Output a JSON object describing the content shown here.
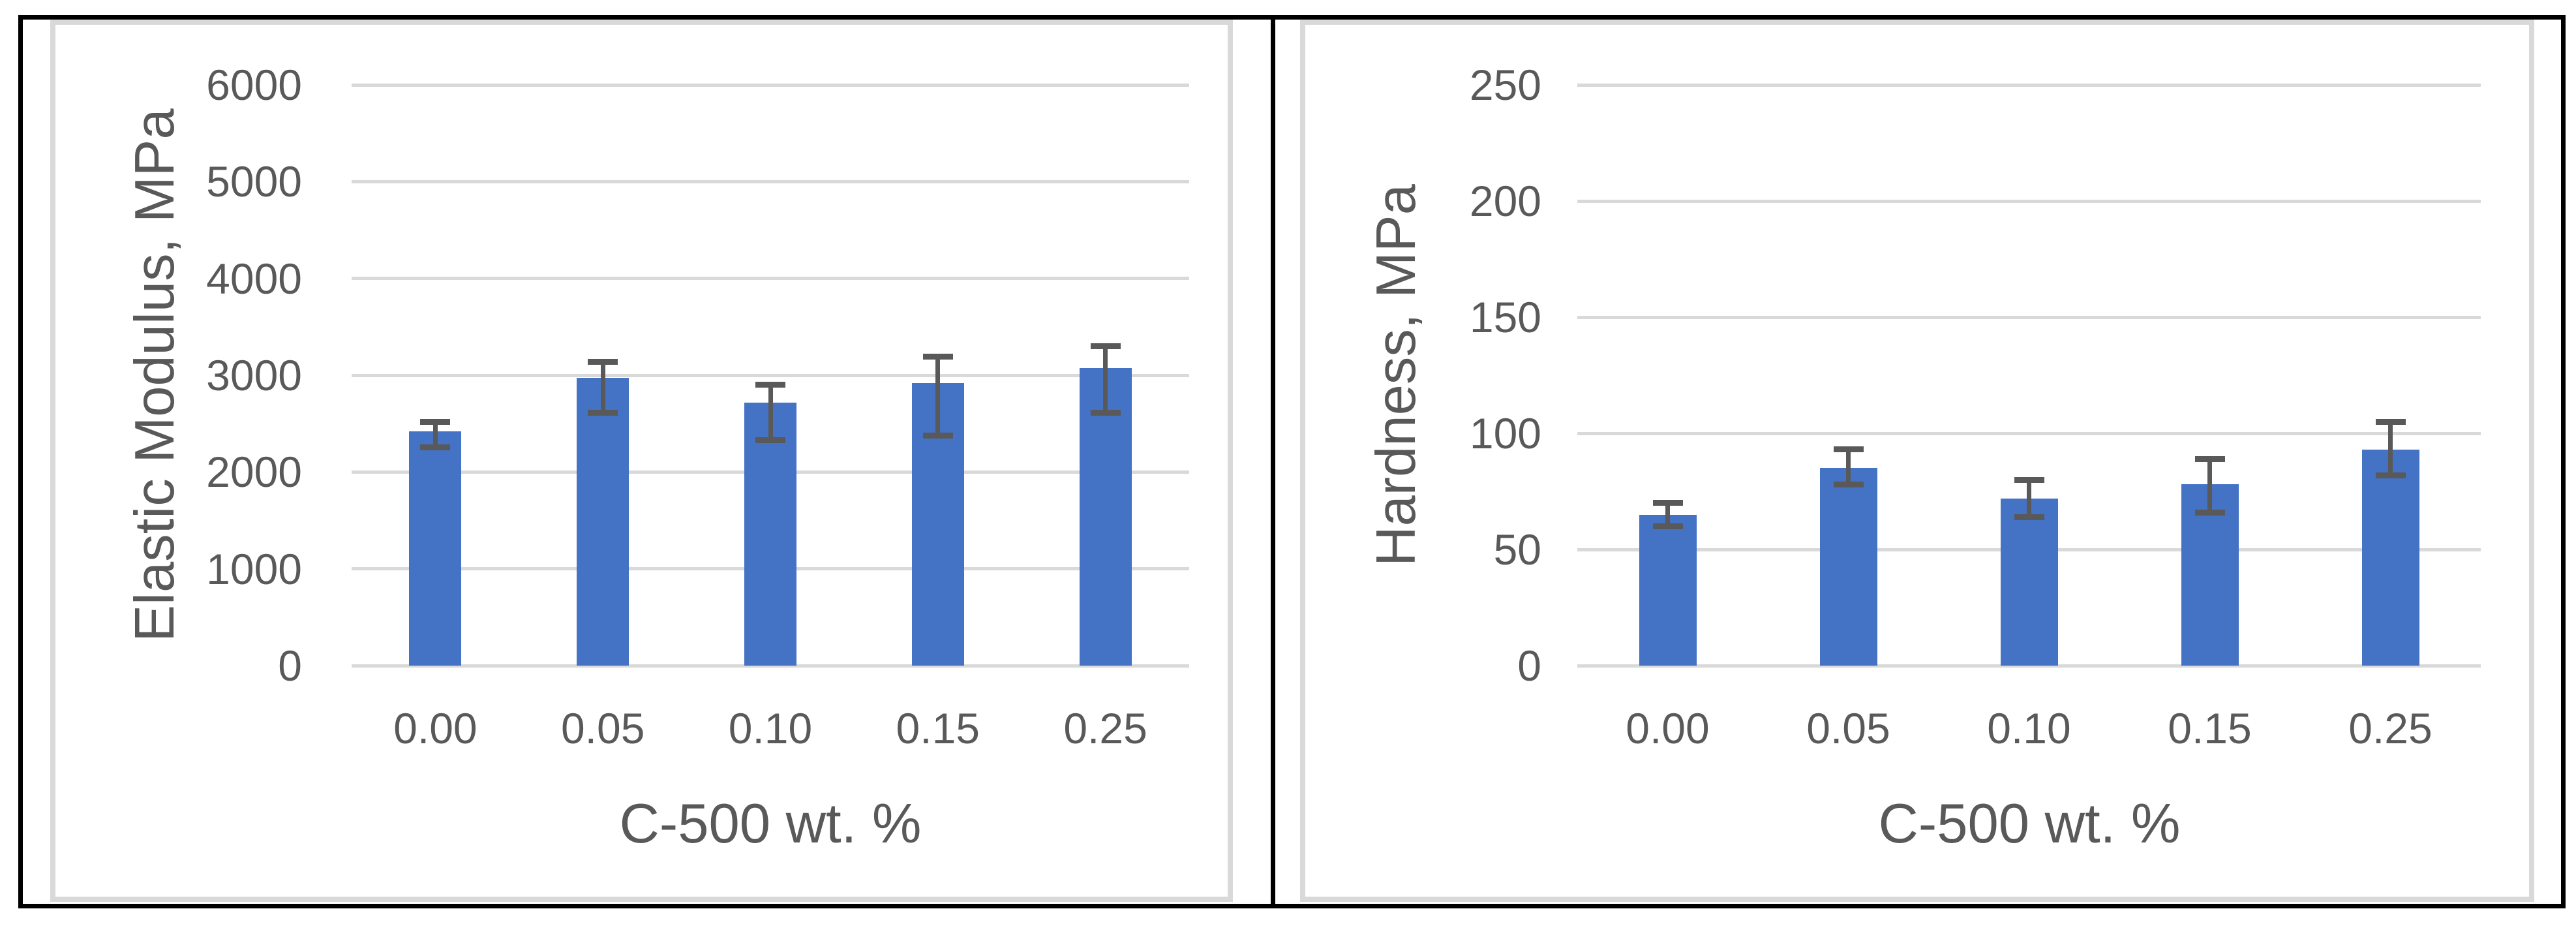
{
  "page": {
    "background": "#FFFFFF"
  },
  "colors": {
    "bar": "#4472C4",
    "error_bar": "#595959",
    "gridline": "#D9D9D9",
    "text": "#595959",
    "chart_border": "#D9D9D9",
    "frame_border": "#000000"
  },
  "chart_data": [
    {
      "type": "bar",
      "title": "",
      "xlabel": "C-500 wt. %",
      "ylabel": "Elastic Modulus, MPa",
      "categories": [
        "0.00",
        "0.05",
        "0.10",
        "0.15",
        "0.25"
      ],
      "values": [
        2420,
        2970,
        2720,
        2920,
        3075
      ],
      "error_up": [
        95,
        170,
        180,
        275,
        225
      ],
      "error_down": [
        165,
        360,
        390,
        545,
        465
      ],
      "ylim": [
        0,
        6000
      ],
      "ystep": 1000,
      "ytick_labels": [
        "0",
        "1000",
        "2000",
        "3000",
        "4000",
        "5000",
        "6000"
      ],
      "grid": true,
      "legend": "none",
      "bar_color": "#4472C4"
    },
    {
      "type": "bar",
      "title": "",
      "xlabel": "C-500 wt. %",
      "ylabel": "Hardness, MPa",
      "categories": [
        "0.00",
        "0.05",
        "0.10",
        "0.15",
        "0.25"
      ],
      "values": [
        65,
        85,
        72,
        78,
        93
      ],
      "error_up": [
        5,
        8,
        8,
        11,
        12
      ],
      "error_down": [
        5,
        7,
        8,
        12,
        11
      ],
      "ylim": [
        0,
        250
      ],
      "ystep": 50,
      "ytick_labels": [
        "0",
        "50",
        "100",
        "150",
        "200",
        "250"
      ],
      "grid": true,
      "legend": "none",
      "bar_color": "#4472C4"
    }
  ]
}
